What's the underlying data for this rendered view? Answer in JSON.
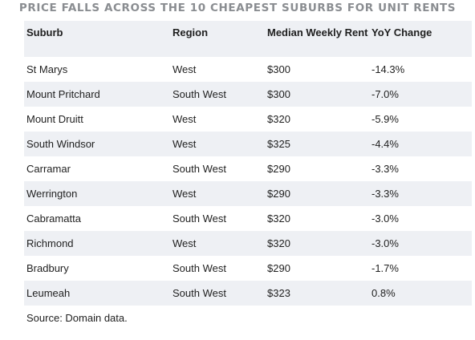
{
  "title": "PRICE FALLS ACROSS THE 10 CHEAPEST SUBURBS FOR UNIT RENTS",
  "table": {
    "headers": [
      "Suburb",
      "Region",
      "Median Weekly Rent",
      "YoY Change"
    ],
    "rows": [
      [
        "St Marys",
        "West",
        "$300",
        "-14.3%"
      ],
      [
        "Mount Pritchard",
        "South West",
        "$300",
        "-7.0%"
      ],
      [
        "Mount Druitt",
        "West",
        "$320",
        "-5.9%"
      ],
      [
        "South Windsor",
        "West",
        "$325",
        "-4.4%"
      ],
      [
        "Carramar",
        "South West",
        "$290",
        "-3.3%"
      ],
      [
        "Werrington",
        "West",
        "$290",
        "-3.3%"
      ],
      [
        "Cabramatta",
        "South West",
        "$320",
        "-3.0%"
      ],
      [
        "Richmond",
        "West",
        "$320",
        "-3.0%"
      ],
      [
        "Bradbury",
        "South West",
        "$290",
        "-1.7%"
      ],
      [
        "Leumeah",
        "South West",
        "$323",
        "0.8%"
      ]
    ]
  },
  "source": "Source: Domain data."
}
